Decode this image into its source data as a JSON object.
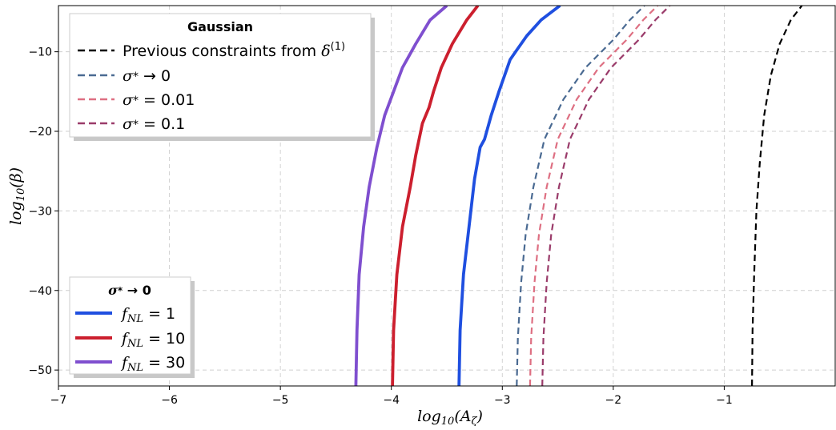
{
  "chart_data": {
    "type": "line",
    "xlabel": "log10(Aζ)",
    "ylabel": "log10(β)",
    "xlim": [
      -7,
      0.0
    ],
    "ylim": [
      -52,
      -4.2
    ],
    "xticks": [
      -7,
      -6,
      -5,
      -4,
      -3,
      -2,
      -1
    ],
    "yticks": [
      -50,
      -40,
      -30,
      -20,
      -10
    ],
    "xtick_labels": [
      "−7",
      "−6",
      "−5",
      "−4",
      "−3",
      "−2",
      "−1"
    ],
    "ytick_labels": [
      "−50",
      "−40",
      "−30",
      "−20",
      "−10"
    ],
    "grid": true,
    "legend_gaussian": {
      "title": "Gaussian",
      "placement": "top-left",
      "entries": [
        "Previous constraints from δ(1)",
        "σ* → 0",
        "σ* = 0.01",
        "σ* = 0.1"
      ]
    },
    "legend_nongaussian": {
      "title": "σ* → 0",
      "placement": "lower-left",
      "entries": [
        "fNL = 1",
        "fNL = 10",
        "fNL = 30"
      ]
    },
    "series": [
      {
        "name": "Previous constraints from δ(1)",
        "color": "#000000",
        "dash": true,
        "width": 2.2,
        "x": [
          -0.75,
          -0.745,
          -0.73,
          -0.71,
          -0.68,
          -0.64,
          -0.58,
          -0.5,
          -0.4,
          -0.3
        ],
        "y": [
          -52,
          -45,
          -38,
          -30,
          -24,
          -18,
          -13,
          -9,
          -6,
          -4.2
        ]
      },
      {
        "name": "σ* → 0",
        "color": "#4a6a92",
        "dash": true,
        "width": 2.2,
        "x": [
          -2.87,
          -2.86,
          -2.83,
          -2.79,
          -2.72,
          -2.62,
          -2.45,
          -2.25,
          -2.0,
          -1.85,
          -1.72
        ],
        "y": [
          -52,
          -46,
          -39,
          -33,
          -27,
          -21,
          -16,
          -12,
          -8.5,
          -6,
          -4.2
        ]
      },
      {
        "name": "σ* = 0.01",
        "color": "#de6f82",
        "dash": true,
        "width": 2.2,
        "x": [
          -2.75,
          -2.74,
          -2.71,
          -2.67,
          -2.6,
          -2.5,
          -2.33,
          -2.13,
          -1.88,
          -1.73,
          -1.6
        ],
        "y": [
          -52,
          -46,
          -39,
          -33,
          -27,
          -21,
          -16,
          -12,
          -8.5,
          -6,
          -4.2
        ]
      },
      {
        "name": "σ* = 0.1",
        "color": "#9a3b6a",
        "dash": true,
        "width": 2.2,
        "x": [
          -2.64,
          -2.63,
          -2.6,
          -2.56,
          -2.49,
          -2.39,
          -2.22,
          -2.02,
          -1.77,
          -1.62,
          -1.49
        ],
        "y": [
          -52,
          -46,
          -39,
          -33,
          -27,
          -21,
          -16,
          -12,
          -8.5,
          -6,
          -4.2
        ]
      },
      {
        "name": "fNL = 1",
        "color": "#1f4fe0",
        "dash": false,
        "width": 3.8,
        "x": [
          -3.39,
          -3.38,
          -3.35,
          -3.3,
          -3.25,
          -3.2,
          -3.16,
          -3.1,
          -3.03,
          -2.93,
          -2.88,
          -2.78,
          -2.65,
          -2.48
        ],
        "y": [
          -52,
          -45,
          -38,
          -32,
          -26,
          -22,
          -21,
          -18,
          -15,
          -11,
          -10,
          -8,
          -6,
          -4.2
        ]
      },
      {
        "name": "fNL = 10",
        "color": "#cc1f2e",
        "dash": false,
        "width": 3.8,
        "x": [
          -3.99,
          -3.98,
          -3.95,
          -3.9,
          -3.83,
          -3.78,
          -3.72,
          -3.66,
          -3.62,
          -3.55,
          -3.45,
          -3.32,
          -3.22
        ],
        "y": [
          -52,
          -45,
          -38,
          -32,
          -27,
          -23,
          -19,
          -17,
          -15,
          -12,
          -9,
          -6,
          -4.2
        ]
      },
      {
        "name": "fNL = 30",
        "color": "#7f4fcf",
        "dash": false,
        "width": 3.8,
        "x": [
          -4.32,
          -4.31,
          -4.29,
          -4.25,
          -4.2,
          -4.13,
          -4.06,
          -3.98,
          -3.9,
          -3.78,
          -3.65,
          -3.5
        ],
        "y": [
          -52,
          -45,
          -38,
          -32,
          -27,
          -22,
          -18,
          -15,
          -12,
          -9,
          -6,
          -4.2
        ]
      }
    ]
  }
}
